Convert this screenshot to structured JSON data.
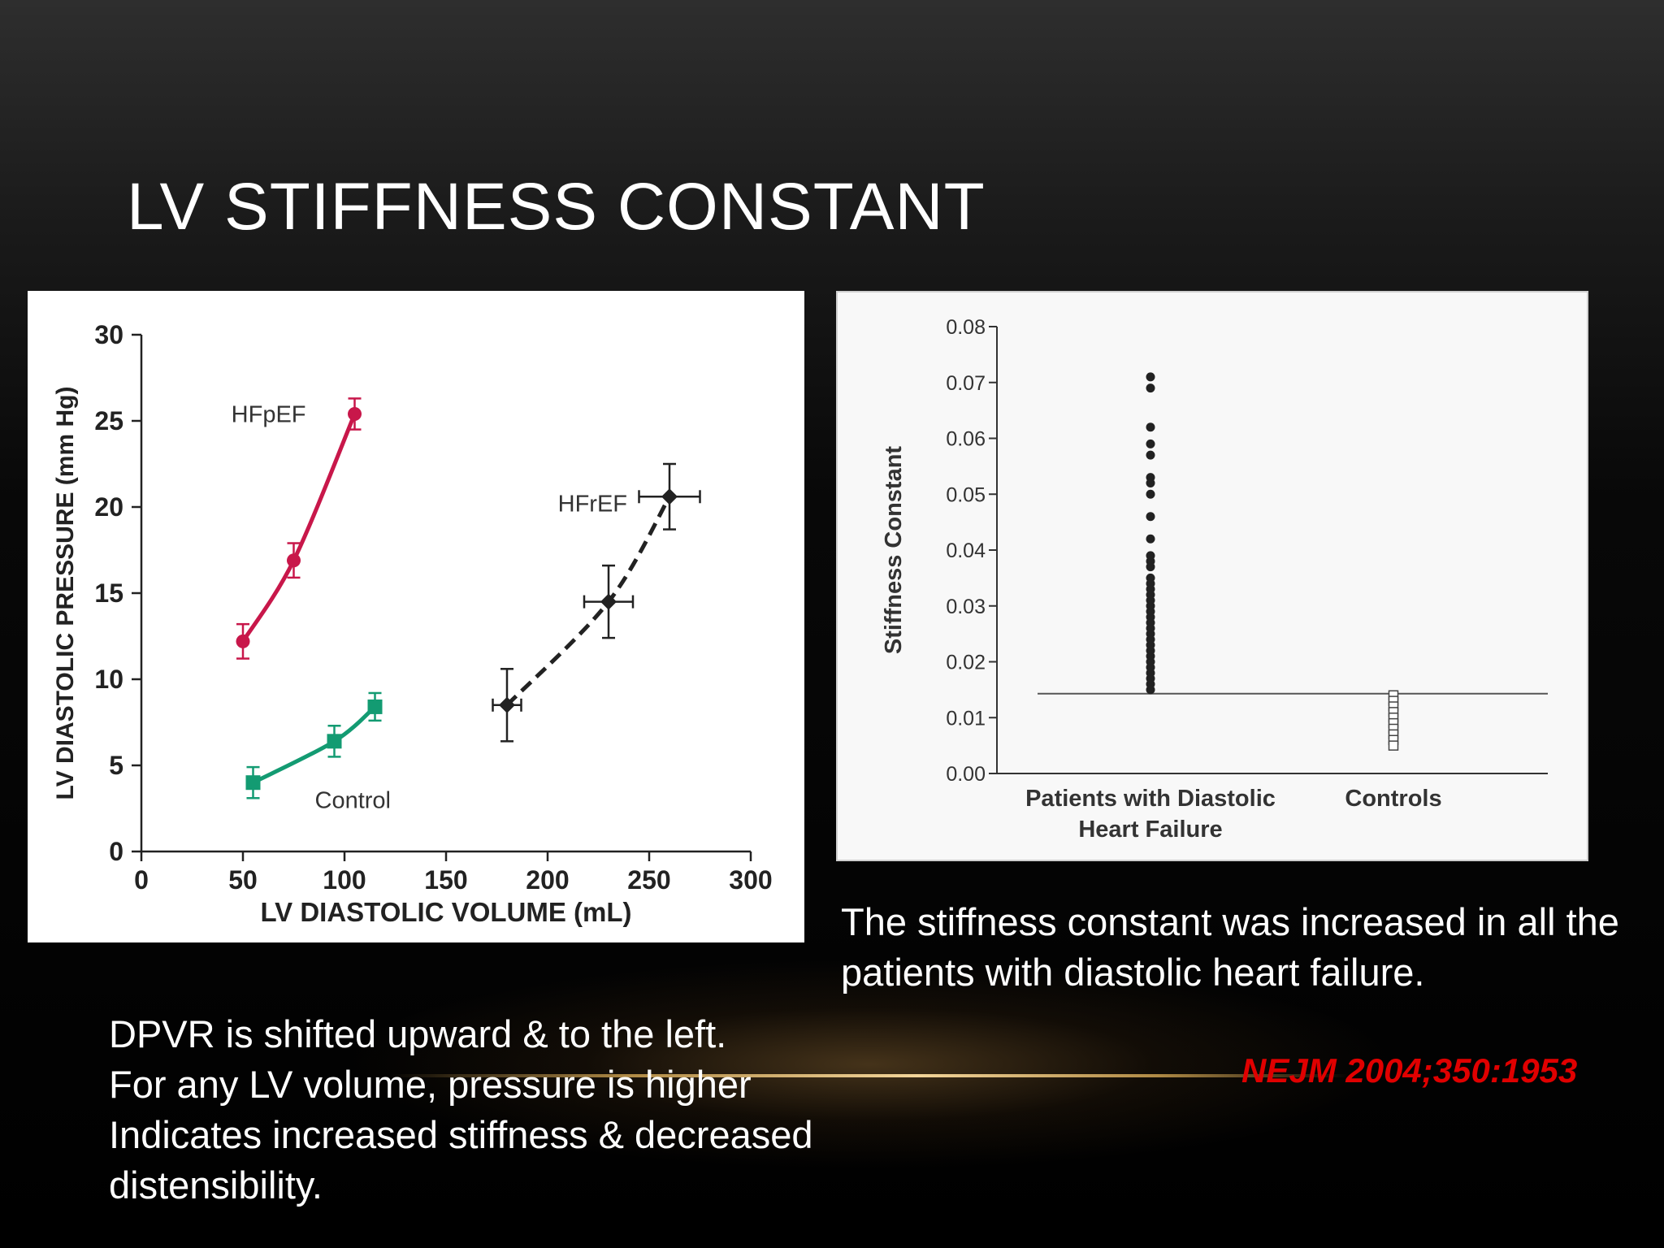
{
  "slide": {
    "title": "LV STIFFNESS CONSTANT",
    "right_caption": [
      "The stiffness constant was increased in all the",
      "patients with diastolic heart failure."
    ],
    "left_caption": [
      "DPVR is shifted upward & to the left.",
      "For any LV volume, pressure is higher",
      "Indicates increased stiffness & decreased",
      "distensibility."
    ],
    "citation": "NEJM 2004;350:1953",
    "colors": {
      "title": "#ffffff",
      "citation": "#e00000",
      "hfpef": "#c8174a",
      "control": "#139b72",
      "hfref": "#222222"
    }
  },
  "chart_data": [
    {
      "type": "line",
      "xlabel": "LV DIASTOLIC VOLUME (mL)",
      "ylabel": "LV DIASTOLIC PRESSURE (mm Hg)",
      "xlim": [
        0,
        300
      ],
      "ylim": [
        0,
        30
      ],
      "xticks": [
        "0",
        "50",
        "100",
        "150",
        "200",
        "250",
        "300"
      ],
      "yticks": [
        "0",
        "5",
        "10",
        "15",
        "20",
        "25",
        "30"
      ],
      "grid": false,
      "series": [
        {
          "name": "HFpEF",
          "color": "#c8174a",
          "dashed": false,
          "points": [
            {
              "x": 50,
              "y": 12.2,
              "yerr": 1.0,
              "xerr": 0
            },
            {
              "x": 75,
              "y": 16.9,
              "yerr": 1.0,
              "xerr": 0
            },
            {
              "x": 105,
              "y": 25.4,
              "yerr": 0.9,
              "xerr": 0
            }
          ]
        },
        {
          "name": "Control",
          "color": "#139b72",
          "dashed": false,
          "points": [
            {
              "x": 55,
              "y": 4.0,
              "yerr": 0.9,
              "xerr": 0
            },
            {
              "x": 95,
              "y": 6.4,
              "yerr": 0.9,
              "xerr": 0
            },
            {
              "x": 115,
              "y": 8.4,
              "yerr": 0.8,
              "xerr": 0
            }
          ]
        },
        {
          "name": "HFrEF",
          "color": "#222222",
          "dashed": true,
          "points": [
            {
              "x": 180,
              "y": 8.5,
              "yerr": 2.1,
              "xerr": 7
            },
            {
              "x": 230,
              "y": 14.5,
              "yerr": 2.1,
              "xerr": 12
            },
            {
              "x": 260,
              "y": 20.6,
              "yerr": 1.9,
              "xerr": 15
            }
          ]
        }
      ]
    },
    {
      "type": "scatter",
      "ylabel": "Stiffness Constant",
      "ylim": [
        0,
        0.08
      ],
      "yticks": [
        "0.00",
        "0.01",
        "0.02",
        "0.03",
        "0.04",
        "0.05",
        "0.06",
        "0.07",
        "0.08"
      ],
      "categories": [
        "Patients with Diastolic Heart Failure",
        "Controls"
      ],
      "category_labels": [
        [
          "Patients with Diastolic",
          "Heart Failure"
        ],
        [
          "Controls"
        ]
      ],
      "reference_line": 0.0143,
      "grid": false,
      "series": [
        {
          "name": "Patients with Diastolic Heart Failure",
          "marker": "filled-circle",
          "values": [
            0.071,
            0.069,
            0.062,
            0.059,
            0.057,
            0.053,
            0.052,
            0.05,
            0.046,
            0.042,
            0.039,
            0.038,
            0.037,
            0.035,
            0.034,
            0.033,
            0.032,
            0.031,
            0.03,
            0.029,
            0.028,
            0.027,
            0.026,
            0.025,
            0.024,
            0.023,
            0.022,
            0.021,
            0.02,
            0.019,
            0.018,
            0.017,
            0.016,
            0.015
          ]
        },
        {
          "name": "Controls",
          "marker": "open-square",
          "values": [
            0.014,
            0.013,
            0.012,
            0.011,
            0.01,
            0.009,
            0.008,
            0.007,
            0.006,
            0.005
          ]
        }
      ]
    }
  ]
}
